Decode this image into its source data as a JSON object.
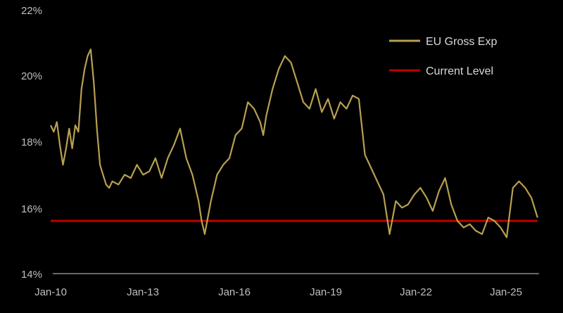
{
  "chart_data": {
    "type": "line",
    "title": "",
    "xlabel": "",
    "ylabel": "",
    "ylim": [
      14,
      22
    ],
    "xlim": [
      2010.0,
      2025.85
    ],
    "x_ticks": [
      "Jan-10",
      "Jan-13",
      "Jan-16",
      "Jan-19",
      "Jan-22",
      "Jan-25"
    ],
    "y_ticks": [
      "14%",
      "16%",
      "18%",
      "20%",
      "22%"
    ],
    "legend_position": "top-right",
    "grid": false,
    "series": [
      {
        "name": "EU Gross Exp",
        "color": "#b8a050",
        "x": [
          2010.0,
          2010.1,
          2010.2,
          2010.3,
          2010.4,
          2010.5,
          2010.6,
          2010.7,
          2010.8,
          2010.9,
          2011.0,
          2011.1,
          2011.2,
          2011.3,
          2011.4,
          2011.5,
          2011.6,
          2011.7,
          2011.8,
          2011.9,
          2012.0,
          2012.2,
          2012.4,
          2012.6,
          2012.8,
          2013.0,
          2013.2,
          2013.4,
          2013.6,
          2013.8,
          2014.0,
          2014.2,
          2014.4,
          2014.6,
          2014.8,
          2014.9,
          2015.0,
          2015.1,
          2015.2,
          2015.3,
          2015.4,
          2015.6,
          2015.8,
          2016.0,
          2016.2,
          2016.4,
          2016.6,
          2016.8,
          2016.9,
          2017.0,
          2017.2,
          2017.4,
          2017.6,
          2017.8,
          2018.0,
          2018.2,
          2018.4,
          2018.6,
          2018.8,
          2019.0,
          2019.2,
          2019.4,
          2019.6,
          2019.8,
          2020.0,
          2020.2,
          2020.4,
          2020.6,
          2020.8,
          2021.0,
          2021.2,
          2021.4,
          2021.6,
          2021.8,
          2022.0,
          2022.2,
          2022.4,
          2022.6,
          2022.8,
          2023.0,
          2023.2,
          2023.4,
          2023.6,
          2023.8,
          2024.0,
          2024.2,
          2024.4,
          2024.6,
          2024.8,
          2025.0,
          2025.2,
          2025.4,
          2025.6,
          2025.8
        ],
        "y": [
          18.5,
          18.3,
          18.6,
          17.9,
          17.3,
          17.8,
          18.4,
          17.8,
          18.5,
          18.3,
          19.6,
          20.2,
          20.6,
          20.8,
          19.8,
          18.4,
          17.3,
          17.0,
          16.7,
          16.6,
          16.8,
          16.7,
          17.0,
          16.9,
          17.3,
          17.0,
          17.1,
          17.5,
          16.9,
          17.5,
          17.9,
          18.4,
          17.5,
          17.0,
          16.2,
          15.6,
          15.2,
          15.7,
          16.2,
          16.6,
          17.0,
          17.3,
          17.5,
          18.2,
          18.4,
          19.2,
          19.0,
          18.6,
          18.2,
          18.8,
          19.6,
          20.2,
          20.6,
          20.4,
          19.8,
          19.2,
          19.0,
          19.6,
          18.9,
          19.3,
          18.7,
          19.2,
          19.0,
          19.4,
          19.3,
          17.6,
          17.2,
          16.8,
          16.4,
          15.2,
          16.2,
          16.0,
          16.1,
          16.4,
          16.6,
          16.3,
          15.9,
          16.5,
          16.9,
          16.1,
          15.6,
          15.4,
          15.5,
          15.3,
          15.2,
          15.7,
          15.6,
          15.4,
          15.1,
          16.6,
          16.8,
          16.6,
          16.3,
          15.7
        ]
      },
      {
        "name": "Current Level",
        "color": "#c00000",
        "x": [
          2010.0,
          2025.8
        ],
        "y": [
          15.6,
          15.6
        ]
      }
    ]
  }
}
